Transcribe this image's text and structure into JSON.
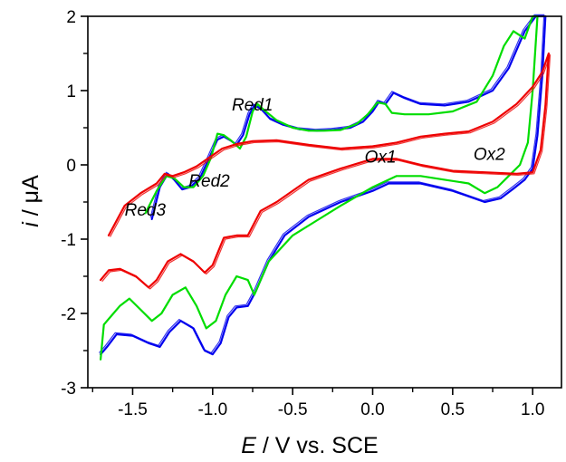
{
  "chart_data": {
    "type": "line",
    "title": "",
    "xlabel": {
      "symbol": "E",
      "rest": " / V vs. SCE"
    },
    "ylabel": {
      "symbol": "i",
      "rest": " / μA"
    },
    "xlim": [
      -1.78,
      1.18
    ],
    "ylim": [
      -3,
      2
    ],
    "xticks": [
      -1.5,
      -1.0,
      -0.5,
      0.0,
      0.5,
      1.0
    ],
    "xtick_labels": [
      "-1.5",
      "-1.0",
      "-0.5",
      "0.0",
      "0.5",
      "1.0"
    ],
    "yticks": [
      -3,
      -2,
      -1,
      0,
      1,
      2
    ],
    "ytick_labels": [
      "-3",
      "-2",
      "-1",
      "0",
      "1",
      "2"
    ],
    "grid": false,
    "annotations": [
      {
        "text": "Red1",
        "x": -0.88,
        "y": 0.73
      },
      {
        "text": "Red2",
        "x": -1.15,
        "y": -0.29
      },
      {
        "text": "Red3",
        "x": -1.55,
        "y": -0.68
      },
      {
        "text": "Ox1",
        "x": -0.05,
        "y": 0.03
      },
      {
        "text": "Ox2",
        "x": 0.63,
        "y": 0.07
      }
    ],
    "series": [
      {
        "color": "#0000ee",
        "values": [
          [
            -1.38,
            -0.73
          ],
          [
            -1.33,
            -0.3
          ],
          [
            -1.28,
            -0.12
          ],
          [
            -1.24,
            -0.2
          ],
          [
            -1.19,
            -0.33
          ],
          [
            -1.14,
            -0.3
          ],
          [
            -1.08,
            -0.18
          ],
          [
            -1.02,
            0.1
          ],
          [
            -0.97,
            0.34
          ],
          [
            -0.93,
            0.38
          ],
          [
            -0.89,
            0.33
          ],
          [
            -0.85,
            0.27
          ],
          [
            -0.81,
            0.4
          ],
          [
            -0.77,
            0.68
          ],
          [
            -0.74,
            0.8
          ],
          [
            -0.7,
            0.76
          ],
          [
            -0.64,
            0.62
          ],
          [
            -0.56,
            0.54
          ],
          [
            -0.46,
            0.48
          ],
          [
            -0.35,
            0.46
          ],
          [
            -0.25,
            0.47
          ],
          [
            -0.14,
            0.5
          ],
          [
            -0.06,
            0.58
          ],
          [
            0.0,
            0.72
          ],
          [
            0.04,
            0.85
          ],
          [
            0.08,
            0.82
          ],
          [
            0.13,
            0.97
          ],
          [
            0.2,
            0.9
          ],
          [
            0.3,
            0.82
          ],
          [
            0.45,
            0.8
          ],
          [
            0.6,
            0.85
          ],
          [
            0.75,
            1.0
          ],
          [
            0.85,
            1.3
          ],
          [
            0.95,
            1.8
          ],
          [
            1.02,
            2.0
          ],
          [
            1.08,
            2.0
          ],
          [
            1.06,
            1.2
          ],
          [
            1.03,
            0.4
          ],
          [
            1.0,
            -0.05
          ],
          [
            0.95,
            -0.2
          ],
          [
            0.88,
            -0.32
          ],
          [
            0.8,
            -0.45
          ],
          [
            0.7,
            -0.5
          ],
          [
            0.5,
            -0.35
          ],
          [
            0.3,
            -0.25
          ],
          [
            0.1,
            -0.25
          ],
          [
            0.0,
            -0.35
          ],
          [
            -0.2,
            -0.5
          ],
          [
            -0.4,
            -0.7
          ],
          [
            -0.55,
            -0.95
          ],
          [
            -0.65,
            -1.3
          ],
          [
            -0.7,
            -1.55
          ],
          [
            -0.73,
            -1.7
          ],
          [
            -0.78,
            -1.9
          ],
          [
            -0.85,
            -1.92
          ],
          [
            -0.9,
            -2.05
          ],
          [
            -0.95,
            -2.4
          ],
          [
            -1.0,
            -2.55
          ],
          [
            -1.05,
            -2.5
          ],
          [
            -1.12,
            -2.2
          ],
          [
            -1.2,
            -2.1
          ],
          [
            -1.27,
            -2.25
          ],
          [
            -1.33,
            -2.45
          ],
          [
            -1.4,
            -2.4
          ],
          [
            -1.5,
            -2.3
          ],
          [
            -1.6,
            -2.28
          ],
          [
            -1.66,
            -2.45
          ],
          [
            -1.7,
            -2.55
          ]
        ]
      },
      {
        "color": "#00dd00",
        "values": [
          [
            -1.42,
            -0.65
          ],
          [
            -1.35,
            -0.35
          ],
          [
            -1.29,
            -0.15
          ],
          [
            -1.24,
            -0.18
          ],
          [
            -1.18,
            -0.3
          ],
          [
            -1.12,
            -0.3
          ],
          [
            -1.06,
            -0.15
          ],
          [
            -1.01,
            0.1
          ],
          [
            -0.97,
            0.42
          ],
          [
            -0.93,
            0.4
          ],
          [
            -0.88,
            0.32
          ],
          [
            -0.83,
            0.22
          ],
          [
            -0.79,
            0.38
          ],
          [
            -0.75,
            0.72
          ],
          [
            -0.72,
            0.82
          ],
          [
            -0.68,
            0.74
          ],
          [
            -0.6,
            0.6
          ],
          [
            -0.5,
            0.5
          ],
          [
            -0.4,
            0.46
          ],
          [
            -0.3,
            0.46
          ],
          [
            -0.2,
            0.47
          ],
          [
            -0.1,
            0.55
          ],
          [
            -0.03,
            0.68
          ],
          [
            0.03,
            0.84
          ],
          [
            0.08,
            0.82
          ],
          [
            0.12,
            0.7
          ],
          [
            0.2,
            0.68
          ],
          [
            0.35,
            0.68
          ],
          [
            0.5,
            0.72
          ],
          [
            0.65,
            0.85
          ],
          [
            0.75,
            1.2
          ],
          [
            0.82,
            1.6
          ],
          [
            0.88,
            1.8
          ],
          [
            0.95,
            1.7
          ],
          [
            1.0,
            2.0
          ],
          [
            1.03,
            2.0
          ],
          [
            1.0,
            1.0
          ],
          [
            0.97,
            0.3
          ],
          [
            0.92,
            0.0
          ],
          [
            0.85,
            -0.15
          ],
          [
            0.78,
            -0.3
          ],
          [
            0.7,
            -0.38
          ],
          [
            0.6,
            -0.25
          ],
          [
            0.45,
            -0.2
          ],
          [
            0.3,
            -0.15
          ],
          [
            0.15,
            -0.15
          ],
          [
            0.0,
            -0.3
          ],
          [
            -0.2,
            -0.55
          ],
          [
            -0.35,
            -0.75
          ],
          [
            -0.5,
            -0.95
          ],
          [
            -0.65,
            -1.3
          ],
          [
            -0.7,
            -1.55
          ],
          [
            -0.74,
            -1.75
          ],
          [
            -0.78,
            -1.55
          ],
          [
            -0.85,
            -1.5
          ],
          [
            -0.92,
            -1.75
          ],
          [
            -0.98,
            -2.1
          ],
          [
            -1.04,
            -2.2
          ],
          [
            -1.1,
            -1.9
          ],
          [
            -1.17,
            -1.65
          ],
          [
            -1.25,
            -1.75
          ],
          [
            -1.32,
            -2.0
          ],
          [
            -1.38,
            -2.1
          ],
          [
            -1.45,
            -1.95
          ],
          [
            -1.52,
            -1.8
          ],
          [
            -1.58,
            -1.9
          ],
          [
            -1.64,
            -2.05
          ],
          [
            -1.68,
            -2.15
          ],
          [
            -1.7,
            -2.62
          ]
        ]
      },
      {
        "color": "#ee0000",
        "values": [
          [
            -1.65,
            -0.95
          ],
          [
            -1.55,
            -0.55
          ],
          [
            -1.45,
            -0.38
          ],
          [
            -1.35,
            -0.25
          ],
          [
            -1.3,
            -0.12
          ],
          [
            -1.25,
            -0.15
          ],
          [
            -1.18,
            -0.1
          ],
          [
            -1.1,
            -0.02
          ],
          [
            -1.02,
            0.1
          ],
          [
            -0.94,
            0.22
          ],
          [
            -0.85,
            0.28
          ],
          [
            -0.75,
            0.32
          ],
          [
            -0.6,
            0.33
          ],
          [
            -0.4,
            0.27
          ],
          [
            -0.2,
            0.22
          ],
          [
            0.0,
            0.25
          ],
          [
            0.15,
            0.3
          ],
          [
            0.3,
            0.38
          ],
          [
            0.45,
            0.42
          ],
          [
            0.6,
            0.45
          ],
          [
            0.75,
            0.58
          ],
          [
            0.9,
            0.82
          ],
          [
            1.0,
            1.05
          ],
          [
            1.06,
            1.25
          ],
          [
            1.1,
            1.5
          ],
          [
            1.08,
            0.8
          ],
          [
            1.05,
            0.2
          ],
          [
            1.0,
            -0.1
          ],
          [
            0.9,
            -0.12
          ],
          [
            0.7,
            -0.1
          ],
          [
            0.5,
            -0.08
          ],
          [
            0.3,
            0.0
          ],
          [
            0.15,
            0.08
          ],
          [
            0.0,
            0.08
          ],
          [
            -0.2,
            -0.05
          ],
          [
            -0.4,
            -0.2
          ],
          [
            -0.6,
            -0.5
          ],
          [
            -0.7,
            -0.62
          ],
          [
            -0.78,
            -0.95
          ],
          [
            -0.85,
            -0.95
          ],
          [
            -0.93,
            -0.98
          ],
          [
            -1.0,
            -1.35
          ],
          [
            -1.05,
            -1.45
          ],
          [
            -1.12,
            -1.3
          ],
          [
            -1.2,
            -1.2
          ],
          [
            -1.28,
            -1.3
          ],
          [
            -1.35,
            -1.55
          ],
          [
            -1.4,
            -1.65
          ],
          [
            -1.48,
            -1.5
          ],
          [
            -1.58,
            -1.4
          ],
          [
            -1.65,
            -1.42
          ],
          [
            -1.7,
            -1.55
          ]
        ]
      }
    ]
  }
}
